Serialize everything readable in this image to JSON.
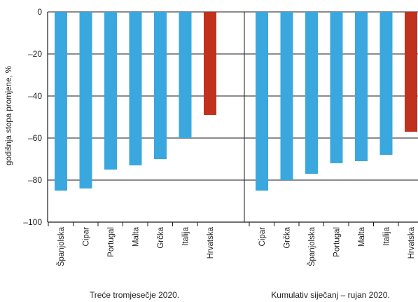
{
  "chart_data": {
    "type": "bar",
    "ylabel": "godišnja stopa promjene, %",
    "ylim": [
      -100,
      0
    ],
    "yticks": [
      "0",
      "–20",
      "–40",
      "–60",
      "–80",
      "–100"
    ],
    "ytick_values": [
      0,
      -20,
      -40,
      -60,
      -80,
      -100
    ],
    "grid": true,
    "colors": {
      "default": "#3aa8de",
      "highlight": "#c0321d"
    },
    "groups": [
      {
        "label": "Treće tromjesečje 2020.",
        "categories": [
          "Španjolska",
          "Cipar",
          "Portugal",
          "Malta",
          "Grčka",
          "Italija",
          "Hrvatska"
        ],
        "values": [
          -85,
          -84,
          -75,
          -73,
          -70,
          -60,
          -49
        ]
      },
      {
        "label": "Kumulativ siječanj – rujan 2020.",
        "categories": [
          "Cipar",
          "Grčka",
          "Španjolska",
          "Portugal",
          "Malta",
          "Italija",
          "Hrvatska"
        ],
        "values": [
          -85,
          -80,
          -77,
          -72,
          -71,
          -68,
          -57
        ]
      }
    ],
    "highlight_category": "Hrvatska"
  }
}
